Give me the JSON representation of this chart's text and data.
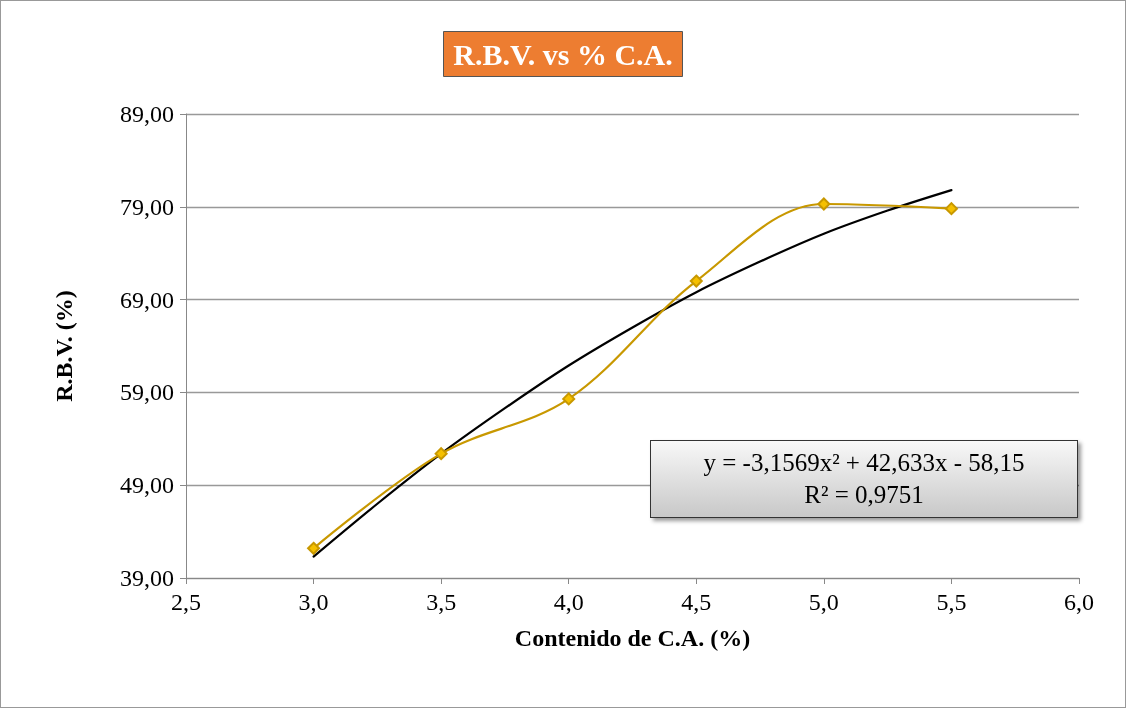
{
  "chart_data": {
    "type": "line",
    "title": "R.B.V. vs % C.A.",
    "xlabel": "Contenido de C.A. (%)",
    "ylabel": "R.B.V. (%)",
    "x": [
      3.0,
      3.5,
      4.0,
      4.5,
      5.0,
      5.5
    ],
    "series": [
      {
        "color": "#c89800",
        "values": [
          42.2,
          52.4,
          58.3,
          71.0,
          79.3,
          78.8
        ],
        "marker": "diamond"
      },
      {
        "type": "line",
        "color": "#000000",
        "x": [
          3.0,
          3.25,
          3.5,
          3.75,
          4.0,
          4.25,
          4.5,
          4.75,
          5.0,
          5.25,
          5.5
        ],
        "values": [
          41.3,
          47.0,
          52.4,
          57.3,
          61.9,
          66.0,
          69.8,
          73.1,
          76.1,
          78.6,
          80.8
        ],
        "marker": "none"
      }
    ],
    "xlim": [
      2.5,
      6.0
    ],
    "ylim": [
      39,
      89
    ],
    "xticks": [
      {
        "value": 2.5,
        "label": "2,5"
      },
      {
        "value": 3.0,
        "label": "3,0"
      },
      {
        "value": 3.5,
        "label": "3,5"
      },
      {
        "value": 4.0,
        "label": "4,0"
      },
      {
        "value": 4.5,
        "label": "4,5"
      },
      {
        "value": 5.0,
        "label": "5,0"
      },
      {
        "value": 5.5,
        "label": "5,5"
      },
      {
        "value": 6.0,
        "label": "6,0"
      }
    ],
    "yticks": [
      {
        "value": 39,
        "label": "39,00"
      },
      {
        "value": 49,
        "label": "49,00"
      },
      {
        "value": 59,
        "label": "59,00"
      },
      {
        "value": 69,
        "label": "69,00"
      },
      {
        "value": 79,
        "label": "79,00"
      },
      {
        "value": 89,
        "label": "89,00"
      }
    ],
    "grid": "y",
    "line_style": "solid",
    "annotations": [
      "y = -3,1569x² + 42,633x - 58,15\nR² = 0,9751"
    ]
  }
}
